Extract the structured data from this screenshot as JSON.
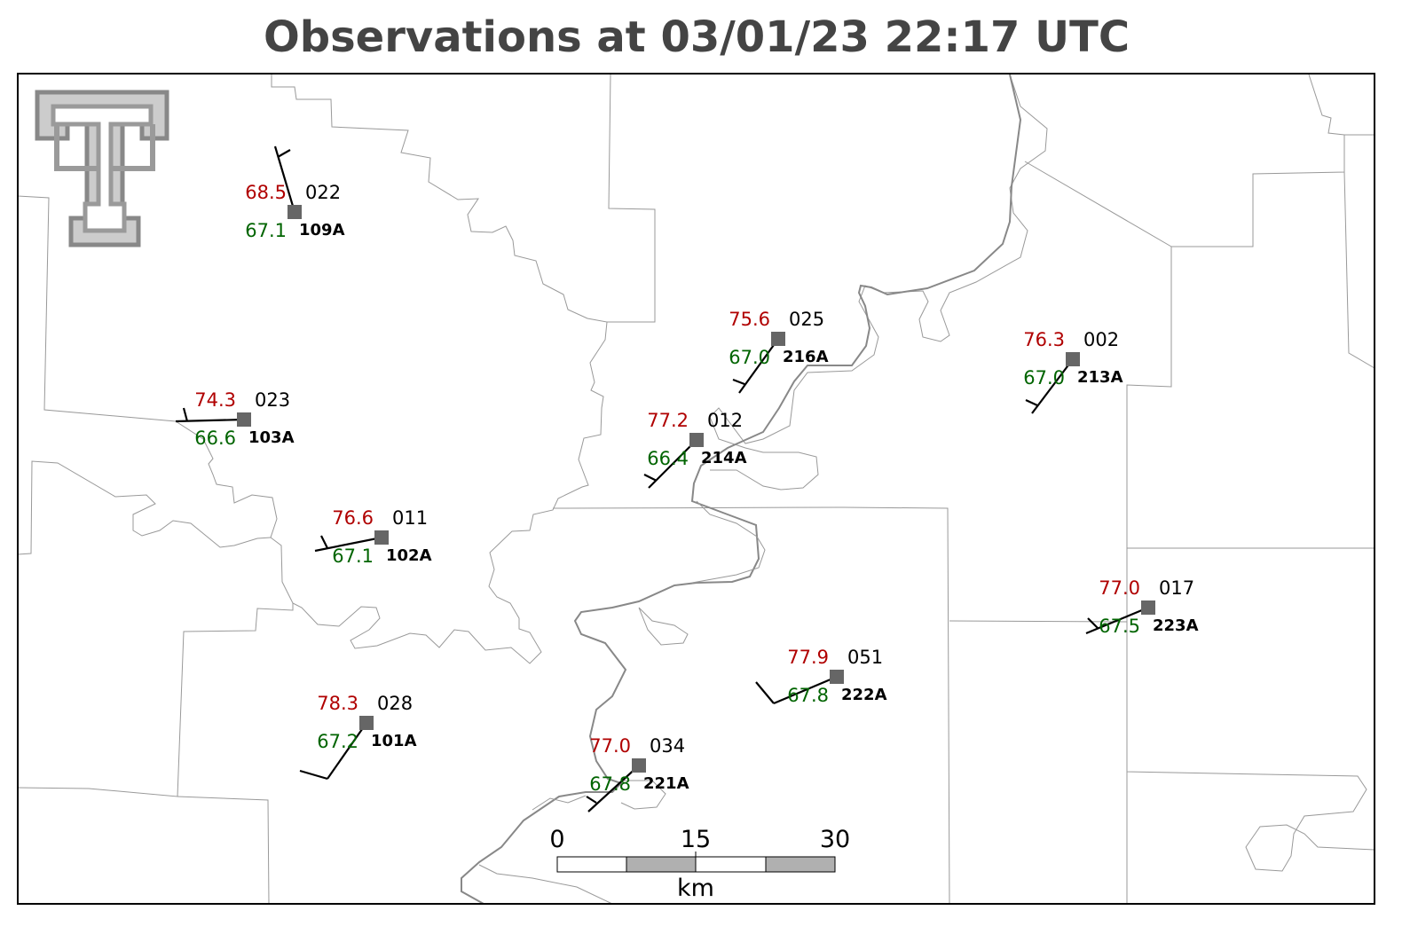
{
  "title": "Observations at 03/01/23 22:17 UTC",
  "stations": [
    {
      "temp": "68.5",
      "dewpoint": "67.1",
      "code": "022",
      "id": "109A"
    },
    {
      "temp": "74.3",
      "dewpoint": "66.6",
      "code": "023",
      "id": "103A"
    },
    {
      "temp": "76.6",
      "dewpoint": "67.1",
      "code": "011",
      "id": "102A"
    },
    {
      "temp": "78.3",
      "dewpoint": "67.2",
      "code": "028",
      "id": "101A"
    },
    {
      "temp": "77.0",
      "dewpoint": "67.8",
      "code": "034",
      "id": "221A"
    },
    {
      "temp": "77.9",
      "dewpoint": "67.8",
      "code": "051",
      "id": "222A"
    },
    {
      "temp": "77.2",
      "dewpoint": "66.4",
      "code": "012",
      "id": "214A"
    },
    {
      "temp": "75.6",
      "dewpoint": "67.0",
      "code": "025",
      "id": "216A"
    },
    {
      "temp": "76.3",
      "dewpoint": "67.0",
      "code": "002",
      "id": "213A"
    },
    {
      "temp": "77.0",
      "dewpoint": "67.5",
      "code": "017",
      "id": "223A"
    }
  ],
  "scale_bar": {
    "labels": [
      "0",
      "15",
      "30"
    ],
    "unit": "km"
  }
}
